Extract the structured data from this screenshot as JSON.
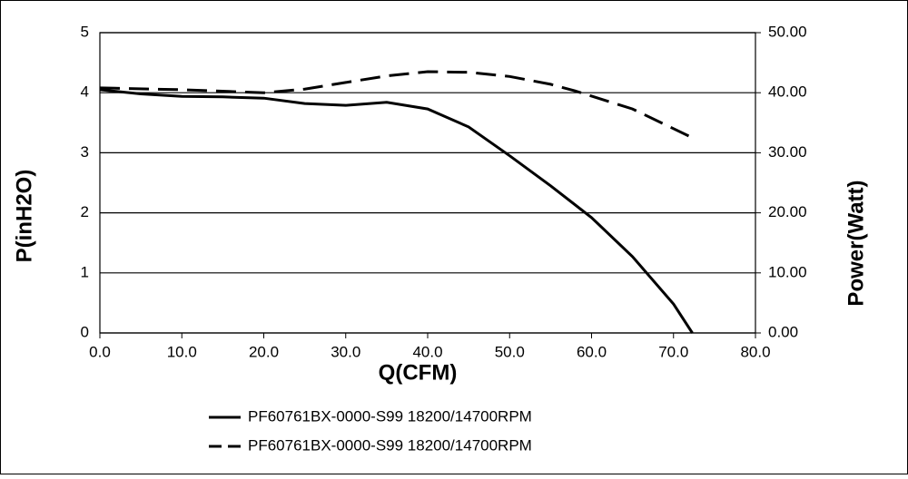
{
  "chart_data": {
    "type": "line",
    "x_label": "Q(CFM)",
    "y_label": "P(inH2O)",
    "y2_label": "Power(Watt)",
    "xlim": [
      0,
      80
    ],
    "xticks": [
      {
        "value": 0,
        "label": "0.0"
      },
      {
        "value": 10,
        "label": "10.0"
      },
      {
        "value": 20,
        "label": "20.0"
      },
      {
        "value": 30,
        "label": "30.0"
      },
      {
        "value": 40,
        "label": "40.0"
      },
      {
        "value": 50,
        "label": "50.0"
      },
      {
        "value": 60,
        "label": "60.0"
      },
      {
        "value": 70,
        "label": "70.0"
      },
      {
        "value": 80,
        "label": "80.0"
      }
    ],
    "ylim": [
      0,
      5
    ],
    "yticks": [
      0,
      1,
      2,
      3,
      4,
      5
    ],
    "y2lim": [
      0,
      50
    ],
    "y2ticks": [
      {
        "value": 0,
        "label": "0.00"
      },
      {
        "value": 10,
        "label": "10.00"
      },
      {
        "value": 20,
        "label": "20.00"
      },
      {
        "value": 30,
        "label": "30.00"
      },
      {
        "value": 40,
        "label": "40.00"
      },
      {
        "value": 50,
        "label": "50.00"
      }
    ],
    "grid": true,
    "series": [
      {
        "name": "PF60761BX-0000-S99 18200/14700RPM",
        "color": "#000000",
        "line_style": "solid",
        "x": [
          0,
          5,
          10,
          15,
          20,
          25,
          30,
          35,
          40,
          45,
          50,
          55,
          60,
          65,
          70,
          72.3
        ],
        "values": [
          4.05,
          3.98,
          3.94,
          3.93,
          3.91,
          3.82,
          3.79,
          3.84,
          3.73,
          3.43,
          2.95,
          2.45,
          1.92,
          1.27,
          0.48,
          0
        ]
      },
      {
        "name": "PF60761BX-0000-S99 18200/14700RPM",
        "color": "#000000",
        "line_style": "dashed",
        "axis": "y2",
        "x": [
          0,
          10,
          20,
          25,
          30,
          35,
          40,
          45,
          50,
          55,
          58,
          65,
          72.3
        ],
        "values": [
          40.8,
          40.5,
          40.0,
          40.6,
          41.7,
          42.8,
          43.5,
          43.4,
          42.7,
          41.4,
          40.3,
          37.3,
          32.5
        ]
      }
    ]
  }
}
